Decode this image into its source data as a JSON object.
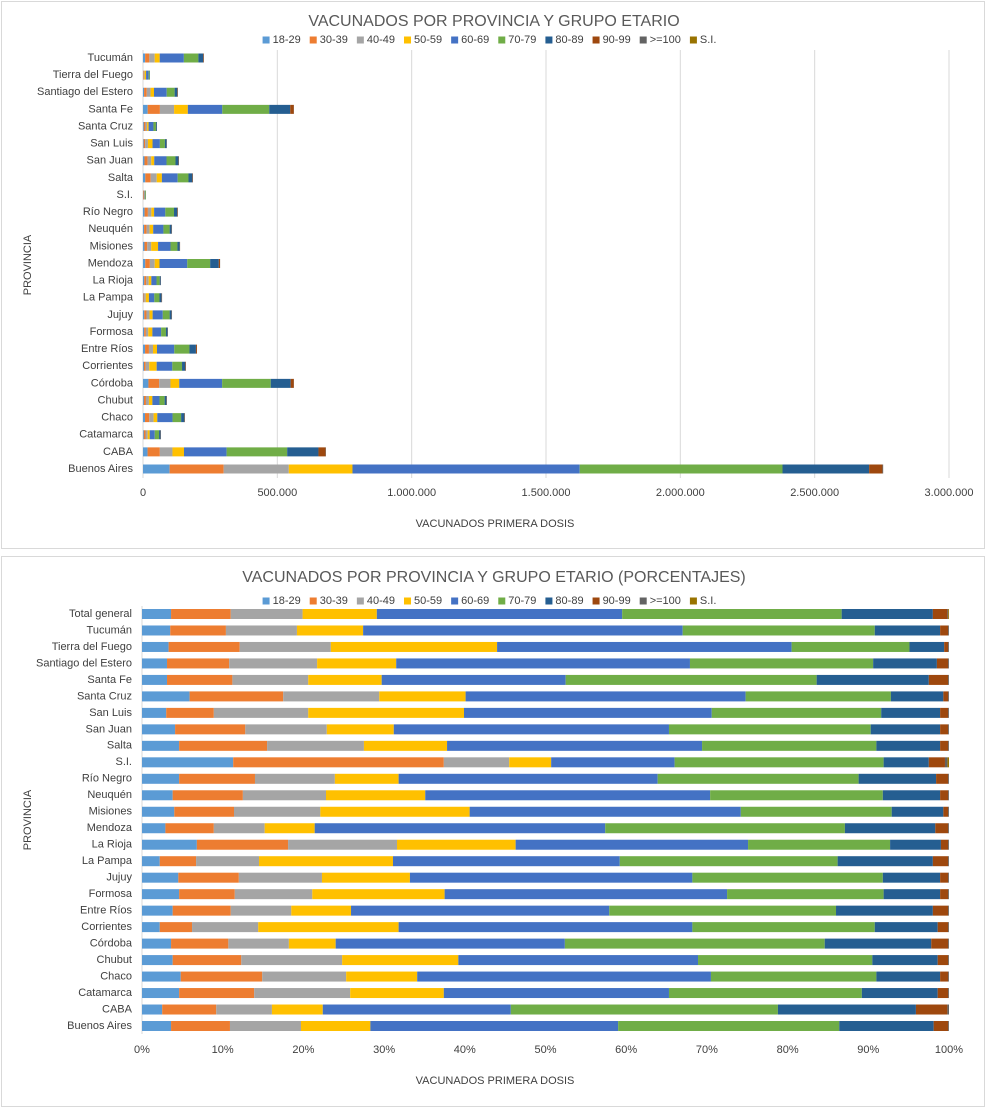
{
  "chart_data": [
    {
      "type": "stacked-barh",
      "title": "VACUNADOS POR PROVINCIA Y GRUPO ETARIO",
      "x_label": "VACUNADOS  PRIMERA  DOSIS",
      "y_label": "PROVINCIA",
      "categories": [
        "Buenos Aires",
        "CABA",
        "Catamarca",
        "Chaco",
        "Chubut",
        "Córdoba",
        "Corrientes",
        "Entre Ríos",
        "Formosa",
        "Jujuy",
        "La Pampa",
        "La Rioja",
        "Mendoza",
        "Misiones",
        "Neuquén",
        "Río Negro",
        "S.I.",
        "Salta",
        "San Juan",
        "San Luis",
        "Santa Cruz",
        "Santa Fe",
        "Santiago del Estero",
        "Tierra del Fuego",
        "Tucumán"
      ],
      "series": [
        {
          "name": "18-29",
          "color": "#5b9bd5",
          "values": [
            99180,
            17025,
            3082,
            7488,
            3382,
            20232,
            3520,
            7638,
            4278,
            4860,
            1562,
            4556,
            8323,
            5520,
            4104,
            5980,
            1243,
            8556,
            5494,
            2670,
            3068,
            17422,
            4030,
            858,
            7945
          ]
        },
        {
          "name": "30-39",
          "color": "#ed7d31",
          "values": [
            201115,
            45627,
            6231,
            15756,
            7565,
            39902,
            6400,
            14472,
            6417,
            8100,
            3195,
            7571,
            17220,
            10212,
            9396,
            12220,
            2871,
            20274,
            11658,
            5251,
            6032,
            45522,
            10010,
            2288,
            15663
          ]
        },
        {
          "name": "40-49",
          "color": "#a5a5a5",
          "values": [
            242440,
            46989,
            7973,
            16224,
            11125,
            42150,
            13120,
            15075,
            8928,
            11124,
            5538,
            9045,
            18081,
            14766,
            11124,
            12870,
            891,
            22320,
            13534,
            10413,
            6188,
            52828,
            14170,
            2938,
            19976
          ]
        },
        {
          "name": "50-59",
          "color": "#ffc000",
          "values": [
            236930,
            42903,
            7772,
            13728,
            12816,
            32596,
            27840,
            14874,
            15252,
            11772,
            11786,
            9849,
            17794,
            25530,
            13284,
            10270,
            572,
            19158,
            11122,
            17177,
            5564,
            51142,
            12740,
            5356,
            18614
          ]
        },
        {
          "name": "60-69",
          "color": "#4472c4",
          "values": [
            845785,
            158673,
            18693,
            56784,
            26433,
            159608,
            58240,
            64320,
            32550,
            37800,
            19951,
            19296,
            103320,
            46368,
            38124,
            41730,
            1683,
            58776,
            45694,
            27323,
            18044,
            128136,
            47320,
            9490,
            89892
          ]
        },
        {
          "name": "70-79",
          "color": "#70ad47",
          "values": [
            754870,
            225411,
            16013,
            31980,
            19224,
            180964,
            36160,
            56481,
            18042,
            25488,
            19170,
            11792,
            85239,
            25806,
            23112,
            32370,
            2849,
            40176,
            33500,
            18690,
            9360,
            174782,
            29510,
            3796,
            54026
          ]
        },
        {
          "name": "80-89",
          "color": "#255e91",
          "values": [
            322335,
            116451,
            6298,
            12324,
            7209,
            74184,
            12480,
            24120,
            6510,
            7668,
            8378,
            4221,
            32144,
            8832,
            7668,
            12480,
            616,
            14694,
            11524,
            6497,
            3380,
            78118,
            10270,
            1118,
            18387
          ]
        },
        {
          "name": "90-99",
          "color": "#9e480e",
          "values": [
            49590,
            26559,
            871,
            1560,
            1157,
            11802,
            2080,
            3819,
            930,
            1080,
            1349,
            603,
            4592,
            828,
            1080,
            1950,
            220,
            1860,
            1340,
            890,
            312,
            13488,
            1820,
            130,
            2270
          ]
        },
        {
          "name": ">=100",
          "color": "#636363",
          "values": [
            2755,
            1362,
            67,
            156,
            89,
            562,
            160,
            201,
            93,
            108,
            71,
            67,
            287,
            138,
            108,
            130,
            33,
            186,
            134,
            89,
            52,
            562,
            130,
            26,
            227
          ]
        },
        {
          "name": "S.I.",
          "color": "#997300",
          "values": [
            0,
            0,
            0,
            0,
            0,
            0,
            0,
            0,
            0,
            0,
            0,
            0,
            0,
            0,
            0,
            0,
            22,
            0,
            0,
            0,
            0,
            0,
            0,
            0,
            0
          ]
        }
      ],
      "xlim": [
        0,
        3000000
      ],
      "xticks": [
        0,
        {
          "value": 500000,
          "label": "500.000"
        },
        {
          "value": 1000000,
          "label": "1.000.000"
        },
        {
          "value": 1500000,
          "label": "1.500.000"
        },
        {
          "value": 2000000,
          "label": "2.000.000"
        },
        {
          "value": 2500000,
          "label": "2.500.000"
        },
        {
          "value": 3000000,
          "label": "3.000.000"
        }
      ],
      "grid": true,
      "legend": "top"
    },
    {
      "type": "stacked-barh",
      "title": "VACUNADOS POR PROVINCIA Y GRUPO ETARIO (PORCENTAJES)",
      "x_label": "VACUNADOS  PRIMERA  DOSIS",
      "y_label": "PROVINCIA",
      "categories": [
        "Buenos Aires",
        "CABA",
        "Catamarca",
        "Chaco",
        "Chubut",
        "Córdoba",
        "Corrientes",
        "Entre Ríos",
        "Formosa",
        "Jujuy",
        "La Pampa",
        "La Rioja",
        "Mendoza",
        "Misiones",
        "Neuquén",
        "Río Negro",
        "S.I.",
        "Salta",
        "San Juan",
        "San Luis",
        "Santa Cruz",
        "Santa Fe",
        "Santiago del Estero",
        "Tierra del Fuego",
        "Tucumán",
        "Total general"
      ],
      "series": [
        {
          "name": "18-29",
          "color": "#5b9bd5",
          "values": [
            3.6,
            2.5,
            4.6,
            4.8,
            3.8,
            3.6,
            2.2,
            3.8,
            4.6,
            4.5,
            2.2,
            6.8,
            2.9,
            4.0,
            3.8,
            4.6,
            11.3,
            4.6,
            4.1,
            3.0,
            5.9,
            3.1,
            3.1,
            3.3,
            3.5,
            3.6
          ]
        },
        {
          "name": "30-39",
          "color": "#ed7d31",
          "values": [
            7.3,
            6.7,
            9.3,
            10.1,
            8.5,
            7.1,
            4.0,
            7.2,
            6.9,
            7.5,
            4.5,
            11.3,
            6.0,
            7.4,
            8.7,
            9.4,
            26.1,
            10.9,
            8.7,
            5.9,
            11.6,
            8.1,
            7.7,
            8.8,
            6.9,
            7.4
          ]
        },
        {
          "name": "40-49",
          "color": "#a5a5a5",
          "values": [
            8.8,
            6.9,
            11.9,
            10.4,
            12.5,
            7.5,
            8.2,
            7.5,
            9.6,
            10.3,
            7.8,
            13.5,
            6.3,
            10.7,
            10.3,
            9.9,
            8.1,
            12.0,
            10.1,
            11.7,
            11.9,
            9.4,
            10.9,
            11.3,
            8.8,
            8.9
          ]
        },
        {
          "name": "50-59",
          "color": "#ffc000",
          "values": [
            8.6,
            6.3,
            11.6,
            8.8,
            14.4,
            5.8,
            17.4,
            7.4,
            16.4,
            10.9,
            16.6,
            14.7,
            6.2,
            18.5,
            12.3,
            7.9,
            5.2,
            10.3,
            8.3,
            19.3,
            10.7,
            9.1,
            9.8,
            20.6,
            8.2,
            9.2
          ]
        },
        {
          "name": "60-69",
          "color": "#4472c4",
          "values": [
            30.7,
            23.3,
            27.9,
            36.4,
            29.7,
            28.4,
            36.4,
            32.0,
            35.0,
            35.0,
            28.1,
            28.8,
            36.0,
            33.6,
            35.3,
            32.1,
            15.3,
            31.6,
            34.1,
            30.7,
            34.7,
            22.8,
            36.4,
            36.5,
            39.6,
            30.4
          ]
        },
        {
          "name": "70-79",
          "color": "#70ad47",
          "values": [
            27.4,
            33.1,
            23.9,
            20.5,
            21.6,
            32.2,
            22.6,
            28.1,
            19.4,
            23.6,
            27.0,
            17.6,
            29.7,
            18.7,
            21.4,
            24.9,
            25.9,
            21.6,
            25.0,
            21.0,
            18.0,
            31.1,
            22.7,
            14.6,
            23.8,
            27.2
          ]
        },
        {
          "name": "80-89",
          "color": "#255e91",
          "values": [
            11.7,
            17.1,
            9.4,
            7.9,
            8.1,
            13.2,
            7.8,
            12.0,
            7.0,
            7.1,
            11.8,
            6.3,
            11.2,
            6.4,
            7.1,
            9.6,
            5.6,
            7.9,
            8.6,
            7.3,
            6.5,
            13.9,
            7.9,
            4.3,
            8.1,
            11.3
          ]
        },
        {
          "name": "90-99",
          "color": "#9e480e",
          "values": [
            1.8,
            3.9,
            1.3,
            1.0,
            1.3,
            2.1,
            1.3,
            1.9,
            1.0,
            1.0,
            1.9,
            0.9,
            1.6,
            0.6,
            1.0,
            1.5,
            2.0,
            1.0,
            1.0,
            1.0,
            0.6,
            2.4,
            1.4,
            0.5,
            1.0,
            1.8
          ]
        },
        {
          "name": ">=100",
          "color": "#636363",
          "values": [
            0.1,
            0.2,
            0.1,
            0.1,
            0.1,
            0.1,
            0.1,
            0.1,
            0.1,
            0.1,
            0.1,
            0.1,
            0.1,
            0.1,
            0.1,
            0.1,
            0.3,
            0.1,
            0.1,
            0.1,
            0.1,
            0.1,
            0.1,
            0.1,
            0.1,
            0.1
          ]
        },
        {
          "name": "S.I.",
          "color": "#997300",
          "values": [
            0,
            0,
            0,
            0,
            0,
            0,
            0,
            0,
            0,
            0,
            0,
            0,
            0,
            0,
            0,
            0,
            0.2,
            0,
            0,
            0,
            0,
            0,
            0,
            0,
            0,
            0.1
          ]
        }
      ],
      "xlim": [
        0,
        100
      ],
      "xticks": [
        {
          "value": 0,
          "label": "0%"
        },
        {
          "value": 10,
          "label": "10%"
        },
        {
          "value": 20,
          "label": "20%"
        },
        {
          "value": 30,
          "label": "30%"
        },
        {
          "value": 40,
          "label": "40%"
        },
        {
          "value": 50,
          "label": "50%"
        },
        {
          "value": 60,
          "label": "60%"
        },
        {
          "value": 70,
          "label": "70%"
        },
        {
          "value": 80,
          "label": "80%"
        },
        {
          "value": 90,
          "label": "90%"
        },
        {
          "value": 100,
          "label": "100%"
        }
      ],
      "grid": false,
      "legend": "top"
    }
  ]
}
